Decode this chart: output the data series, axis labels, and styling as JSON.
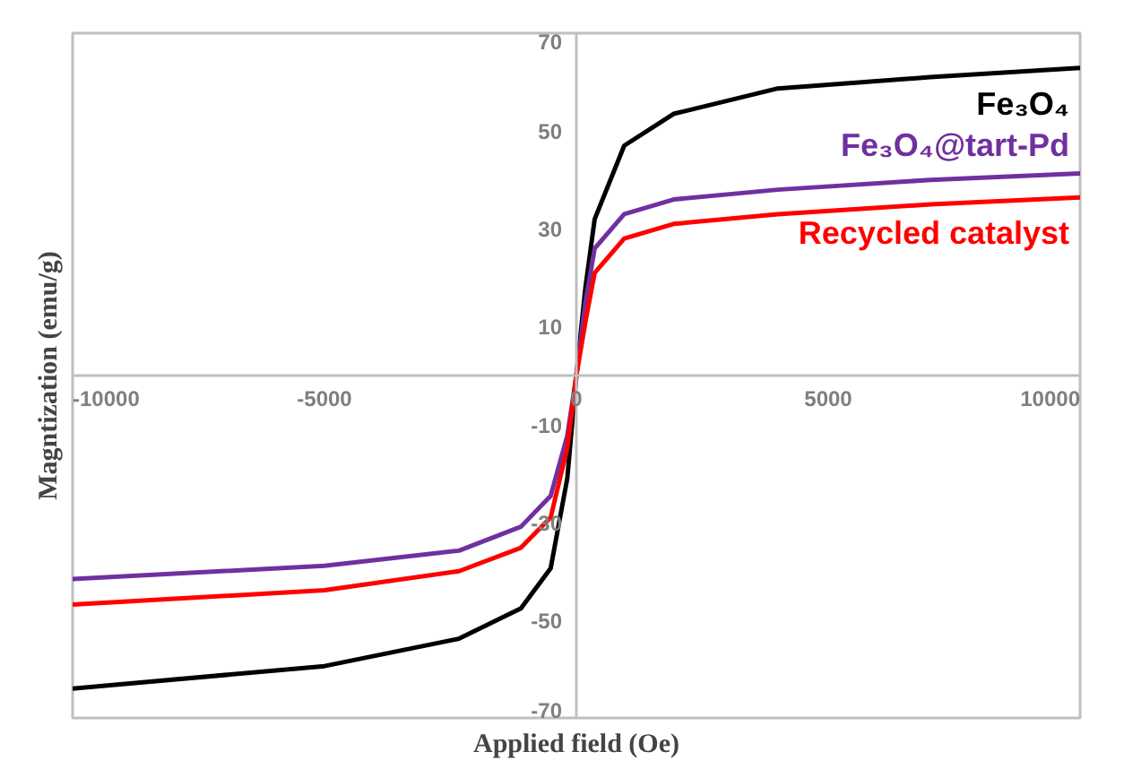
{
  "chart_data": {
    "type": "line",
    "xlabel": "Applied field (Oe)",
    "ylabel": "Magntization (emu/g)",
    "x": [
      -10000,
      -5000,
      -2330,
      -1100,
      -510,
      -180,
      0,
      180,
      364,
      950,
      1930,
      4000,
      7030,
      10000
    ],
    "series": [
      {
        "name": "Fe₃O₄",
        "color": "#000000",
        "values": [
          -64,
          -59.4,
          -53.8,
          -47.6,
          -39.4,
          -21,
          0,
          18,
          32,
          47,
          53.5,
          58.7,
          61,
          62.9
        ]
      },
      {
        "name": "Fe₃O₄@tart-Pd",
        "color": "#7030a0",
        "values": [
          -41.6,
          -38.9,
          -35.8,
          -30.9,
          -24.6,
          -12.3,
          0,
          15,
          26,
          33,
          36,
          38,
          40,
          41.3
        ]
      },
      {
        "name": "Recycled catalyst",
        "color": "#ff0000",
        "values": [
          -46.8,
          -43.9,
          -40,
          -35.2,
          -29,
          -14.8,
          0,
          11,
          21,
          28,
          31,
          33,
          35,
          36.4
        ]
      }
    ],
    "xlim": [
      -10000,
      10000
    ],
    "ylim": [
      -70,
      70
    ],
    "xticks": [
      -10000,
      -5000,
      0,
      5000,
      10000
    ],
    "yticks": [
      -70,
      -50,
      -30,
      -10,
      10,
      30,
      50,
      70
    ],
    "grid": false,
    "legend": false,
    "marker": "none",
    "line_style": "solid"
  }
}
